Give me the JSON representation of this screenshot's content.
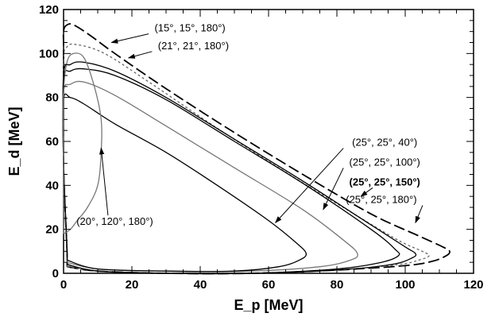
{
  "chart_data": {
    "type": "line",
    "xlabel": "E_p [MeV]",
    "ylabel": "E_d [MeV]",
    "xlim": [
      0,
      120
    ],
    "ylim": [
      0,
      120
    ],
    "xticks": [
      0,
      20,
      40,
      60,
      80,
      100,
      120
    ],
    "yticks": [
      0,
      20,
      40,
      60,
      80,
      100,
      120
    ],
    "grid": false,
    "series": [
      {
        "label": "(15°, 15°, 180°)",
        "style": "long-dash",
        "color": "#000000",
        "points": [
          [
            1,
            3
          ],
          [
            10,
            1
          ],
          [
            30,
            0
          ],
          [
            55,
            0
          ],
          [
            80,
            1.5
          ],
          [
            100,
            3.5
          ],
          [
            108,
            5.5
          ],
          [
            112,
            8
          ],
          [
            113,
            10
          ],
          [
            111,
            12
          ],
          [
            104,
            17
          ],
          [
            90,
            27
          ],
          [
            70,
            45
          ],
          [
            50,
            64
          ],
          [
            30,
            84
          ],
          [
            15,
            100
          ],
          [
            8,
            108
          ],
          [
            3,
            113
          ],
          [
            1,
            113
          ],
          [
            0,
            110
          ],
          [
            0,
            100
          ],
          [
            0,
            50
          ],
          [
            1,
            10
          ],
          [
            1,
            3
          ]
        ]
      },
      {
        "label": "(21°, 21°, 180°)",
        "style": "dotted",
        "color": "#666666",
        "points": [
          [
            1,
            3
          ],
          [
            10,
            1
          ],
          [
            30,
            0
          ],
          [
            55,
            0
          ],
          [
            80,
            1.5
          ],
          [
            98,
            4
          ],
          [
            104,
            6
          ],
          [
            107,
            8
          ],
          [
            105,
            10
          ],
          [
            98,
            15
          ],
          [
            85,
            27
          ],
          [
            65,
            46
          ],
          [
            45,
            66
          ],
          [
            25,
            87
          ],
          [
            12,
            100
          ],
          [
            4,
            104
          ],
          [
            1,
            103
          ],
          [
            0,
            95
          ],
          [
            0,
            50
          ],
          [
            1,
            10
          ],
          [
            1,
            3
          ]
        ]
      },
      {
        "label": "(25°, 25°, 180°)",
        "style": "solid",
        "color": "#000000",
        "points": [
          [
            1,
            4
          ],
          [
            10,
            1
          ],
          [
            30,
            0
          ],
          [
            55,
            0
          ],
          [
            80,
            1.5
          ],
          [
            96,
            4
          ],
          [
            102,
            7
          ],
          [
            103,
            9
          ],
          [
            100,
            12
          ],
          [
            90,
            22
          ],
          [
            70,
            42
          ],
          [
            50,
            61
          ],
          [
            30,
            80
          ],
          [
            15,
            92
          ],
          [
            6,
            96
          ],
          [
            2,
            95
          ],
          [
            0,
            90
          ],
          [
            0,
            50
          ],
          [
            1,
            10
          ],
          [
            1,
            4
          ]
        ]
      },
      {
        "label": "(25°, 25°, 150°)",
        "style": "solid",
        "color": "#000000",
        "points": [
          [
            1,
            4
          ],
          [
            10,
            1
          ],
          [
            30,
            0
          ],
          [
            55,
            0
          ],
          [
            80,
            2
          ],
          [
            93,
            5
          ],
          [
            98,
            8
          ],
          [
            97,
            11
          ],
          [
            90,
            20
          ],
          [
            70,
            41
          ],
          [
            50,
            60
          ],
          [
            30,
            79
          ],
          [
            15,
            90
          ],
          [
            6,
            93
          ],
          [
            2,
            92
          ],
          [
            0,
            88
          ],
          [
            0,
            50
          ],
          [
            1,
            10
          ],
          [
            1,
            4
          ]
        ]
      },
      {
        "label": "(25°, 25°, 100°)",
        "style": "solid",
        "color": "#777777",
        "points": [
          [
            1,
            5
          ],
          [
            10,
            2
          ],
          [
            30,
            1
          ],
          [
            55,
            1
          ],
          [
            75,
            3
          ],
          [
            84,
            6
          ],
          [
            86,
            9
          ],
          [
            82,
            15
          ],
          [
            70,
            29
          ],
          [
            50,
            48
          ],
          [
            30,
            67
          ],
          [
            15,
            81
          ],
          [
            6,
            87
          ],
          [
            2,
            86
          ],
          [
            0,
            82
          ],
          [
            0,
            50
          ],
          [
            1,
            10
          ],
          [
            1,
            5
          ]
        ]
      },
      {
        "label": "(25°, 25°, 40°)",
        "style": "solid",
        "color": "#000000",
        "points": [
          [
            1,
            6
          ],
          [
            10,
            2
          ],
          [
            30,
            1
          ],
          [
            50,
            1
          ],
          [
            63,
            3
          ],
          [
            69,
            6
          ],
          [
            71,
            9
          ],
          [
            68,
            14
          ],
          [
            60,
            24
          ],
          [
            45,
            40
          ],
          [
            30,
            55
          ],
          [
            15,
            68
          ],
          [
            6,
            77
          ],
          [
            2,
            80
          ],
          [
            0,
            79
          ],
          [
            0,
            50
          ],
          [
            1,
            12
          ],
          [
            1,
            6
          ]
        ]
      },
      {
        "label": "(20°, 120°, 180°)",
        "style": "solid",
        "color": "#777777",
        "points": [
          [
            0,
            18
          ],
          [
            0,
            40
          ],
          [
            0,
            80
          ],
          [
            1,
            96
          ],
          [
            3,
            100
          ],
          [
            6,
            98
          ],
          [
            9,
            85
          ],
          [
            11,
            70
          ],
          [
            11,
            55
          ],
          [
            10,
            40
          ],
          [
            7,
            30
          ],
          [
            4,
            24
          ],
          [
            2,
            20
          ],
          [
            0,
            18
          ]
        ]
      }
    ],
    "annotations": [
      {
        "text": "(15°, 15°, 180°)",
        "bold": false,
        "text_at": [
          37,
          110
        ],
        "arrow_to": [
          14,
          105
        ]
      },
      {
        "text": "(21°, 21°, 180°)",
        "bold": false,
        "text_at": [
          38,
          102
        ],
        "arrow_to": [
          19,
          98
        ]
      },
      {
        "text": "(25°, 25°, 40°)",
        "bold": false,
        "text_at": [
          94,
          58
        ],
        "arrow_to": [
          62,
          23
        ]
      },
      {
        "text": "(25°, 25°, 100°)",
        "bold": false,
        "text_at": [
          94,
          49
        ],
        "arrow_to": [
          76,
          29
        ]
      },
      {
        "text": "(25°, 25°, 150°)",
        "bold": true,
        "text_at": [
          94,
          40
        ],
        "arrow_to": [
          87,
          35
        ]
      },
      {
        "text": "(25°, 25°, 180°)",
        "bold": false,
        "text_at": [
          93,
          32
        ],
        "arrow_to": [
          103,
          23
        ]
      },
      {
        "text": "(20°, 120°, 180°)",
        "bold": false,
        "text_at": [
          15,
          22
        ],
        "arrow_to": [
          11,
          57
        ]
      }
    ]
  }
}
